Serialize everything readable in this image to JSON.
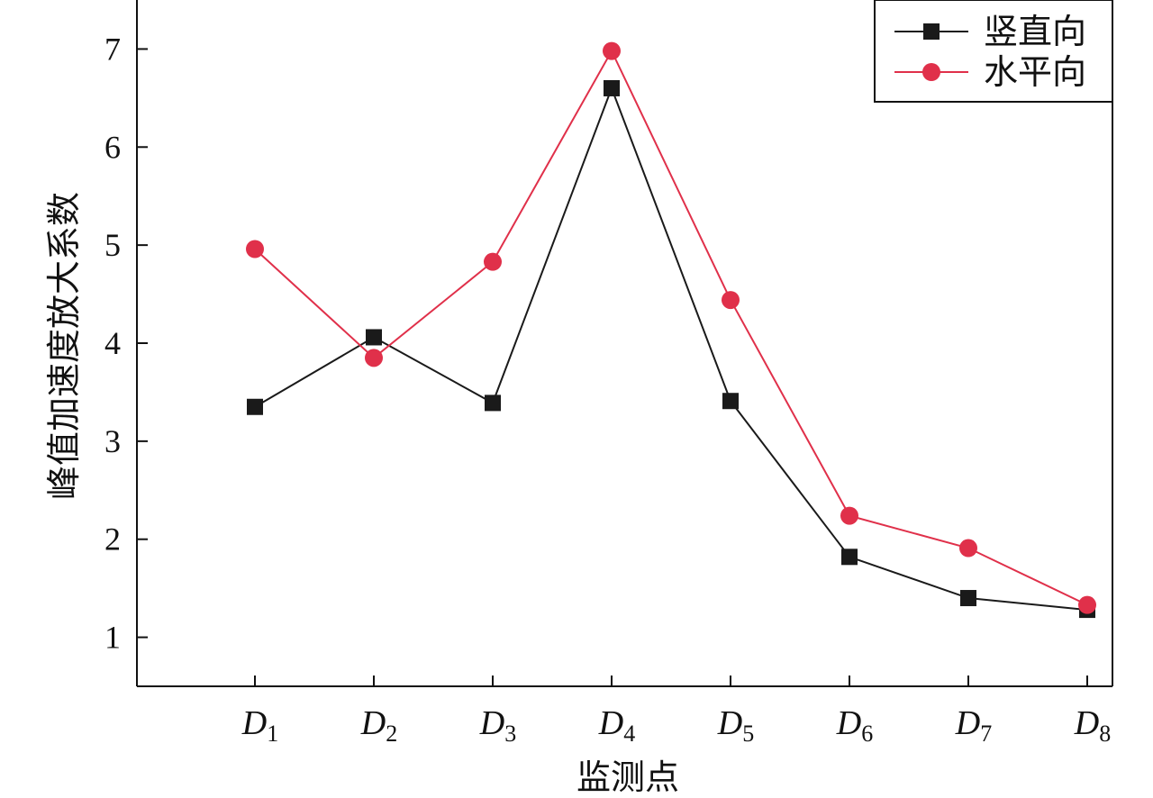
{
  "chart_data": {
    "type": "line",
    "categories": [
      {
        "main": "D",
        "sub": "1"
      },
      {
        "main": "D",
        "sub": "2"
      },
      {
        "main": "D",
        "sub": "3"
      },
      {
        "main": "D",
        "sub": "4"
      },
      {
        "main": "D",
        "sub": "5"
      },
      {
        "main": "D",
        "sub": "6"
      },
      {
        "main": "D",
        "sub": "7"
      },
      {
        "main": "D",
        "sub": "8"
      }
    ],
    "series": [
      {
        "name": "竖直向",
        "color": "#1a1a1a",
        "marker": "square",
        "values": [
          3.35,
          4.06,
          3.39,
          6.6,
          3.41,
          1.82,
          1.4,
          1.28
        ]
      },
      {
        "name": "水平向",
        "color": "#e0304a",
        "marker": "circle",
        "values": [
          4.96,
          3.85,
          4.83,
          6.98,
          4.44,
          2.24,
          1.91,
          1.33
        ]
      }
    ],
    "xlabel": "监测点",
    "ylabel": "峰值加速度放大系数",
    "ylim": [
      0.5,
      7.5
    ],
    "yticks": [
      "1",
      "2",
      "3",
      "4",
      "5",
      "6",
      "7"
    ],
    "legend_position": "top-right",
    "grid": false
  }
}
